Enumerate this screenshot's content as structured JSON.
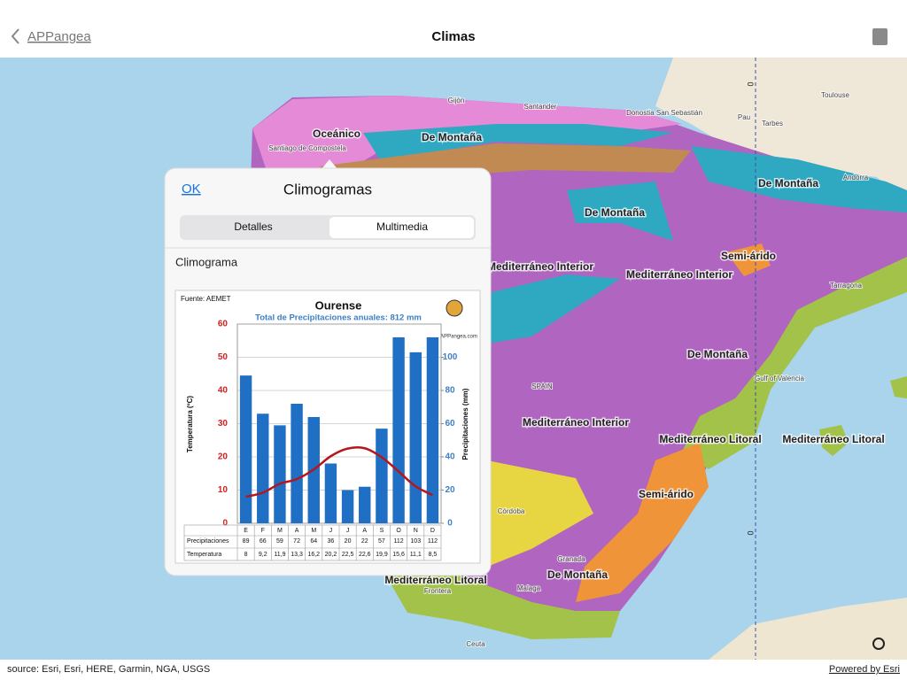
{
  "nav": {
    "back": "APPangea",
    "title": "Climas"
  },
  "map": {
    "zones": [
      "Oceánico",
      "De Montaña",
      "De Montaña",
      "De Montaña",
      "Semi-árido",
      "Mediterráneo Interior",
      "Mediterráneo Interior",
      "De Montaña",
      "Mediterráneo Interior",
      "Mediterráneo Litoral",
      "Mediterráneo Litoral",
      "Semi-árido",
      "Mediterráneo Litoral",
      "De Montaña"
    ],
    "places": [
      "Gijón",
      "Santander",
      "Donostia San Sebastián",
      "Toulouse",
      "Pau",
      "Tarbes",
      "Andorra",
      "Tarragona",
      "SPAIN",
      "Gulf of Valencia",
      "Córdoba",
      "Granada",
      "Malaga",
      "Frontera",
      "Ceuta",
      "Santiago de Compostela"
    ],
    "meridian": "0"
  },
  "popup": {
    "ok": "OK",
    "title": "Climogramas",
    "tabs": [
      "Detalles",
      "Multimedia"
    ],
    "section": "Climograma",
    "chart": {
      "type": "bar",
      "source": "Fuente: AEMET",
      "title": "Ourense",
      "subtitle": "Total de Precipitaciones anuales: 812 mm",
      "brand": "APPangea.com",
      "ylabel": "Temperatura (ºC)",
      "y2label": "Precipitaciones (mm)",
      "categories": [
        "E",
        "F",
        "M",
        "A",
        "M",
        "J",
        "J",
        "A",
        "S",
        "O",
        "N",
        "D"
      ],
      "ylim": [
        0,
        60
      ],
      "yticks": [
        0,
        10,
        20,
        30,
        40,
        50,
        60
      ],
      "y2lim": [
        0,
        120
      ],
      "y2ticks": [
        0,
        20,
        40,
        60,
        80,
        100
      ],
      "grid": true,
      "series": [
        {
          "name": "Precipitaciones",
          "type": "bar",
          "axis": "y2",
          "color": "#1f6fc5",
          "values": [
            89,
            66,
            59,
            72,
            64,
            36,
            20,
            22,
            57,
            112,
            103,
            112
          ]
        },
        {
          "name": "Temperatura",
          "type": "line",
          "color": "#b3171c",
          "values": [
            8,
            9.2,
            11.9,
            13.3,
            16.2,
            20.2,
            22.5,
            22.6,
            19.9,
            15.6,
            11.1,
            8.5
          ],
          "value_labels": [
            "8",
            "9,2",
            "11,9",
            "13,3",
            "16,2",
            "20,2",
            "22,5",
            "22,6",
            "19,9",
            "15,6",
            "11,1",
            "8,5"
          ]
        }
      ]
    }
  },
  "footer": {
    "source": "source: Esri, Esri, HERE, Garmin, NGA, USGS",
    "powered": "Powered by Esri"
  }
}
